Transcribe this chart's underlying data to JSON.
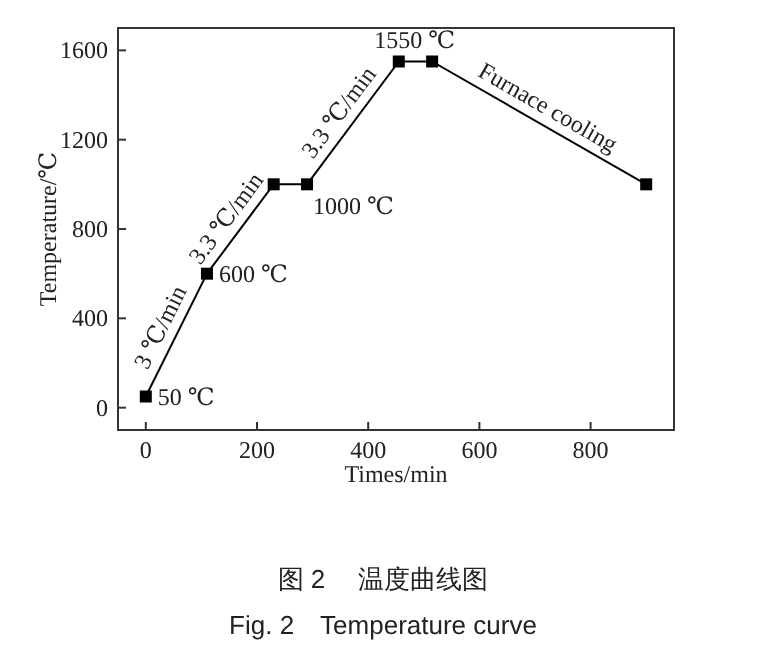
{
  "chart_data": {
    "type": "line",
    "xlabel": "Times/min",
    "ylabel": "Temperature/℃",
    "x": [
      0,
      110,
      230,
      290,
      455,
      515,
      900
    ],
    "values": [
      50,
      600,
      1000,
      1000,
      1550,
      1550,
      1000
    ],
    "color": "#000000",
    "marker": "square",
    "xlim": [
      -50,
      950
    ],
    "ylim": [
      -100,
      1700
    ],
    "xticks": [
      0,
      200,
      400,
      600,
      800
    ],
    "yticks": [
      0,
      400,
      800,
      1200,
      1600
    ],
    "grid": false,
    "annotations": [
      {
        "text": "50 ℃",
        "x": 0,
        "y": 50
      },
      {
        "text": "600 ℃",
        "x": 110,
        "y": 600
      },
      {
        "text": "1000 ℃",
        "x": 290,
        "y": 1000
      },
      {
        "text": "1550 ℃",
        "x": 455,
        "y": 1550
      },
      {
        "text": "3 ℃/min",
        "x": 55,
        "y": 325
      },
      {
        "text": "3.3 ℃/min",
        "x": 170,
        "y": 800
      },
      {
        "text": "3.3 ℃/min",
        "x": 372.5,
        "y": 1275
      },
      {
        "text": "Furnace cooling",
        "x": 707.5,
        "y": 1275
      },
      "图 2　 温度曲线图",
      "Fig. 2　Temperature curve"
    ]
  }
}
